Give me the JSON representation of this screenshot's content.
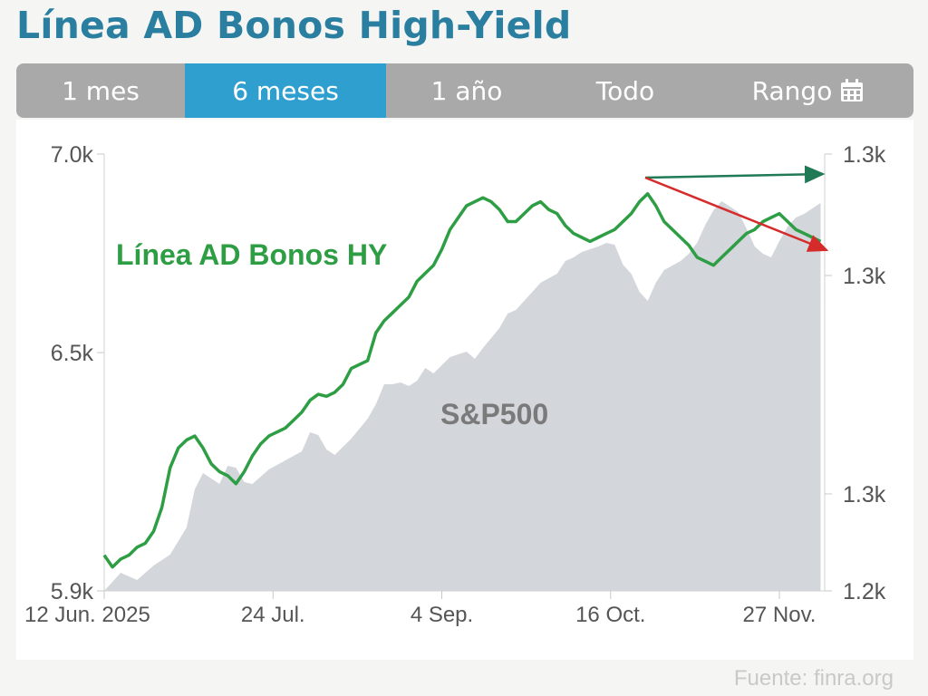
{
  "title": "Línea AD Bonos High-Yield",
  "tabs": [
    {
      "label": "1 mes",
      "active": false
    },
    {
      "label": "6 meses",
      "active": true
    },
    {
      "label": "1 año",
      "active": false
    },
    {
      "label": "Todo",
      "active": false
    },
    {
      "label": "Rango",
      "active": false,
      "icon": "calendar-icon"
    }
  ],
  "source": "Fuente: finra.org",
  "colors": {
    "title": "#2a7fa0",
    "tab_bar": "#a9a9a9",
    "tab_active": "#2f9fd0",
    "line": "#2e9e44",
    "area": "#d3d6db",
    "arrow_up": "#1f7a55",
    "arrow_down": "#d62b2b"
  },
  "chart_data": {
    "type": "line",
    "annotations": [
      "Línea AD Bonos HY",
      "S&P500"
    ],
    "x_ticks": [
      "12 Jun. 2025",
      "24 Jul.",
      "4 Sep.",
      "16 Oct.",
      "27 Nov."
    ],
    "y_left": {
      "ticks": [
        "7.0k",
        "6.5k",
        "5.9k"
      ],
      "tick_values": [
        7000,
        6500,
        5900
      ],
      "range": [
        5900,
        7000
      ]
    },
    "y_right": {
      "ticks": [
        "1.3k",
        "1.3k",
        "1.3k",
        "1.2k"
      ]
    },
    "x_range": [
      0,
      175
    ],
    "grid": false,
    "series": [
      {
        "name": "Línea AD Bonos HY",
        "axis": "left",
        "kind": "line",
        "x": [
          0,
          2,
          4,
          6,
          8,
          10,
          12,
          14,
          16,
          18,
          20,
          22,
          24,
          26,
          28,
          30,
          32,
          34,
          36,
          38,
          40,
          42,
          44,
          46,
          48,
          50,
          52,
          54,
          56,
          58,
          60,
          62,
          64,
          66,
          68,
          70,
          72,
          74,
          76,
          78,
          80,
          82,
          84,
          86,
          88,
          90,
          92,
          94,
          96,
          98,
          100,
          102,
          104,
          106,
          108,
          110,
          112,
          114,
          116,
          118,
          120,
          122,
          124,
          126,
          128,
          130,
          132,
          134,
          136,
          138,
          140,
          142,
          144,
          146,
          148,
          150,
          152,
          154,
          156,
          158,
          160,
          162,
          164,
          166,
          168,
          170,
          172,
          174
        ],
        "values": [
          5990,
          5960,
          5980,
          5990,
          6010,
          6020,
          6050,
          6110,
          6210,
          6260,
          6280,
          6290,
          6260,
          6220,
          6200,
          6190,
          6170,
          6200,
          6240,
          6270,
          6290,
          6300,
          6310,
          6330,
          6350,
          6380,
          6395,
          6390,
          6400,
          6420,
          6460,
          6470,
          6480,
          6550,
          6580,
          6600,
          6620,
          6640,
          6680,
          6700,
          6720,
          6760,
          6810,
          6840,
          6870,
          6880,
          6890,
          6880,
          6860,
          6830,
          6830,
          6850,
          6870,
          6880,
          6860,
          6850,
          6820,
          6800,
          6790,
          6780,
          6790,
          6800,
          6810,
          6830,
          6850,
          6880,
          6900,
          6870,
          6830,
          6810,
          6790,
          6770,
          6740,
          6730,
          6720,
          6740,
          6760,
          6780,
          6800,
          6810,
          6830,
          6840,
          6850,
          6830,
          6810,
          6800,
          6790,
          6780
        ],
        "note": "estimated from chart"
      },
      {
        "name": "S&P500",
        "axis": "right",
        "kind": "area",
        "values_note": "shaded grey area, tracks index from ~1.2k to ~1.3k"
      }
    ]
  }
}
